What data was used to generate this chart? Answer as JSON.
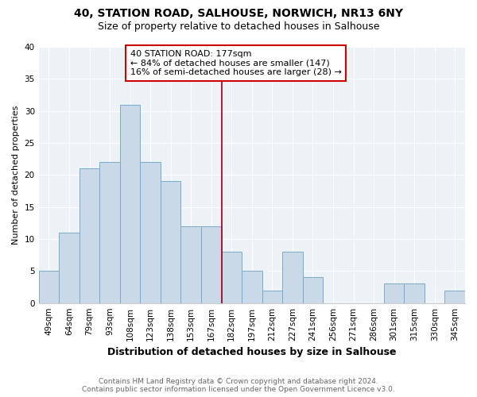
{
  "title1": "40, STATION ROAD, SALHOUSE, NORWICH, NR13 6NY",
  "title2": "Size of property relative to detached houses in Salhouse",
  "xlabel": "Distribution of detached houses by size in Salhouse",
  "ylabel": "Number of detached properties",
  "categories": [
    "49sqm",
    "64sqm",
    "79sqm",
    "93sqm",
    "108sqm",
    "123sqm",
    "138sqm",
    "153sqm",
    "167sqm",
    "182sqm",
    "197sqm",
    "212sqm",
    "227sqm",
    "241sqm",
    "256sqm",
    "271sqm",
    "286sqm",
    "301sqm",
    "315sqm",
    "330sqm",
    "345sqm"
  ],
  "values": [
    5,
    11,
    21,
    22,
    31,
    22,
    19,
    12,
    12,
    8,
    5,
    2,
    8,
    4,
    0,
    0,
    0,
    3,
    3,
    0,
    2
  ],
  "bar_color": "#c9d9e8",
  "bar_edge_color": "#7aabcc",
  "ylim": [
    0,
    40
  ],
  "yticks": [
    0,
    5,
    10,
    15,
    20,
    25,
    30,
    35,
    40
  ],
  "property_label": "40 STATION ROAD: 177sqm",
  "annotation_line1": "← 84% of detached houses are smaller (147)",
  "annotation_line2": "16% of semi-detached houses are larger (28) →",
  "vline_color": "#990000",
  "annotation_box_edge": "#cc0000",
  "bg_color": "#edf2f7",
  "footer1": "Contains HM Land Registry data © Crown copyright and database right 2024.",
  "footer2": "Contains public sector information licensed under the Open Government Licence v3.0.",
  "title1_fontsize": 10,
  "title2_fontsize": 9,
  "xlabel_fontsize": 9,
  "ylabel_fontsize": 8,
  "tick_fontsize": 7.5,
  "annot_fontsize": 8,
  "footer_fontsize": 6.5
}
